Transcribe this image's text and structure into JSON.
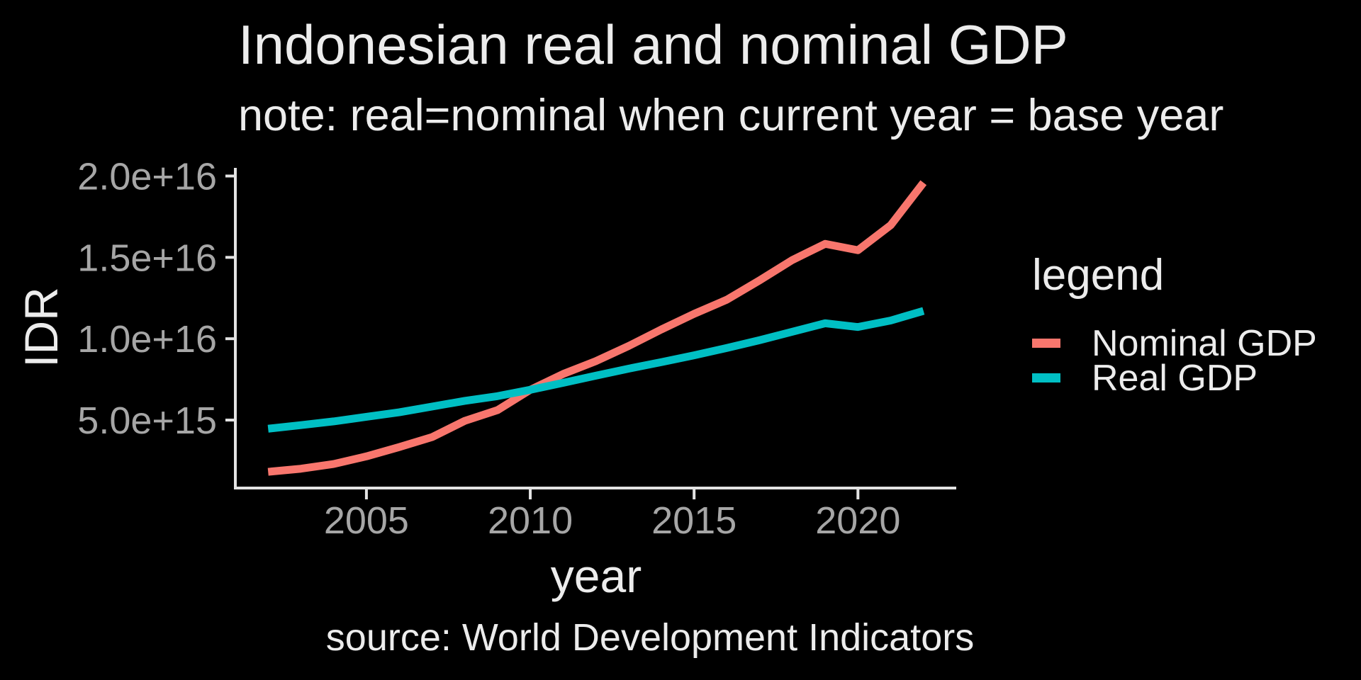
{
  "colors": {
    "background": "#000000",
    "text": "#ECECEC",
    "tick_text": "#A6A6A6",
    "axis_line": "#E3E3E3"
  },
  "chart_data": {
    "type": "line",
    "title": "Indonesian real and nominal GDP",
    "subtitle": "note: real=nominal when current year = base year",
    "caption": "source: World Development Indicators",
    "xlabel": "year",
    "ylabel": "IDR",
    "legend_title": "legend",
    "legend_position": "right",
    "grid": false,
    "x": [
      2002,
      2003,
      2004,
      2005,
      2006,
      2007,
      2008,
      2009,
      2010,
      2011,
      2012,
      2013,
      2014,
      2015,
      2016,
      2017,
      2018,
      2019,
      2020,
      2021,
      2022
    ],
    "series": [
      {
        "name": "Nominal GDP",
        "color": "#F8766D",
        "values": [
          1820000000000000.0,
          2010000000000000.0,
          2300000000000000.0,
          2770000000000000.0,
          3340000000000000.0,
          3950000000000000.0,
          4950000000000000.0,
          5610000000000000.0,
          6860000000000000.0,
          7830000000000000.0,
          8620000000000000.0,
          9550000000000000.0,
          1.057e+16,
          1.153e+16,
          1.24e+16,
          1.359e+16,
          1.484e+16,
          1.583e+16,
          1.544e+16,
          1.698e+16,
          1.959e+16
        ]
      },
      {
        "name": "Real GDP",
        "color": "#00BFC4",
        "values": [
          4470000000000000.0,
          4690000000000000.0,
          4920000000000000.0,
          5200000000000000.0,
          5480000000000000.0,
          5830000000000000.0,
          6180000000000000.0,
          6470000000000000.0,
          6860000000000000.0,
          7290000000000000.0,
          7730000000000000.0,
          8160000000000000.0,
          8560000000000000.0,
          8980000000000000.0,
          9430000000000000.0,
          9910000000000000.0,
          1.043e+16,
          1.095e+16,
          1.072e+16,
          1.112e+16,
          1.171e+16
        ]
      }
    ],
    "x_ticks": [
      {
        "value": 2005,
        "label": "2005"
      },
      {
        "value": 2010,
        "label": "2010"
      },
      {
        "value": 2015,
        "label": "2015"
      },
      {
        "value": 2020,
        "label": "2020"
      }
    ],
    "y_ticks": [
      {
        "value": 5000000000000000.0,
        "label": "5.0e+15"
      },
      {
        "value": 1e+16,
        "label": "1.0e+16"
      },
      {
        "value": 1.5e+16,
        "label": "1.5e+16"
      },
      {
        "value": 2e+16,
        "label": "2.0e+16"
      }
    ],
    "xlim": [
      2001,
      2023
    ],
    "ylim": [
      910000000000000.0,
      2.05e+16
    ]
  }
}
